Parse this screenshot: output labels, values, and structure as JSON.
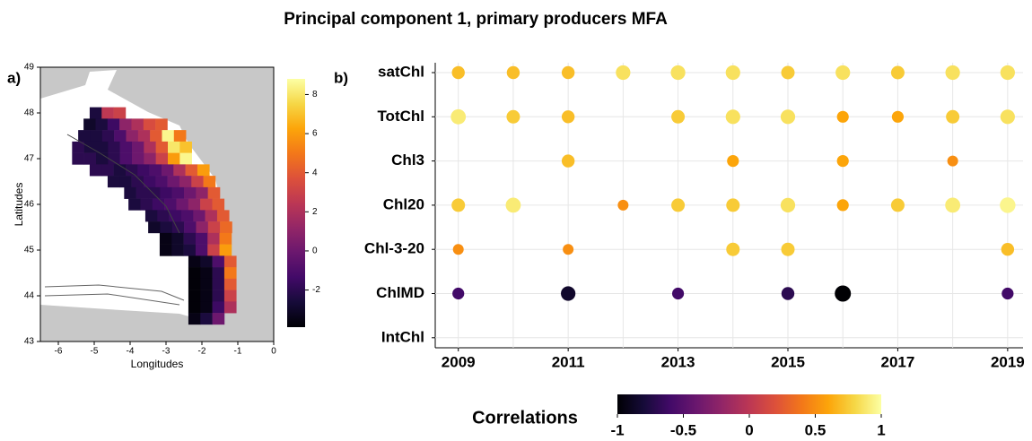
{
  "title": "Principal component 1, primary producers MFA",
  "chart_data": [
    {
      "type": "heatmap",
      "panel": "a)",
      "xlabel": "Longitudes",
      "ylabel": "Latitudes",
      "xlim": [
        -6.5,
        0
      ],
      "ylim": [
        43,
        49
      ],
      "xticks": [
        -6,
        -5,
        -4,
        -3,
        -2,
        -1,
        0
      ],
      "yticks": [
        43,
        44,
        45,
        46,
        47,
        48,
        49
      ],
      "clim": [
        -3.9,
        8.8
      ],
      "colorbar_ticks": [
        -2,
        0,
        2,
        4,
        6,
        8
      ],
      "colormap": "inferno",
      "rows": [
        {
          "lat": 48.0,
          "lon0": -4.96,
          "values": [
            -2.5,
            2.5,
            3
          ]
        },
        {
          "lat": 47.75,
          "lon0": -5.13,
          "values": [
            -3,
            -2.5,
            -1.5,
            1,
            2,
            3.5,
            4
          ]
        },
        {
          "lat": 47.5,
          "lon0": -5.28,
          "values": [
            -2.5,
            -2.5,
            -2,
            -1,
            1,
            2,
            4,
            8.5,
            5
          ]
        },
        {
          "lat": 47.25,
          "lon0": -5.45,
          "values": [
            -2,
            -2.5,
            -2.5,
            -2,
            -1,
            0,
            2,
            4,
            8,
            7
          ]
        },
        {
          "lat": 47.0,
          "lon0": -5.45,
          "values": [
            -2,
            -2,
            -2.5,
            -2,
            -1,
            0,
            1,
            3,
            6,
            8.5
          ]
        },
        {
          "lat": 46.75,
          "lon0": -4.96,
          "values": [
            -2,
            -2,
            -2.5,
            -2,
            -1.5,
            -1,
            0,
            2,
            4,
            6
          ]
        },
        {
          "lat": 46.5,
          "lon0": -4.46,
          "values": [
            -2.5,
            -2.5,
            -2,
            -1.5,
            -1,
            0,
            1,
            3,
            5
          ]
        },
        {
          "lat": 46.25,
          "lon0": -4.0,
          "values": [
            -2.5,
            -2,
            -2,
            -1.5,
            -1,
            0,
            1,
            4
          ]
        },
        {
          "lat": 46.0,
          "lon0": -3.88,
          "values": [
            -2.5,
            -2,
            -1.5,
            -1,
            0,
            1,
            3,
            4
          ]
        },
        {
          "lat": 45.75,
          "lon0": -3.41,
          "values": [
            -2.5,
            -2,
            -1.5,
            -1,
            0,
            2,
            4
          ]
        },
        {
          "lat": 45.5,
          "lon0": -3.33,
          "values": [
            -3,
            -2.5,
            -2,
            -1,
            1,
            3,
            4.5
          ]
        },
        {
          "lat": 45.25,
          "lon0": -3.01,
          "values": [
            -3.5,
            -3,
            -2,
            -1,
            2,
            5
          ]
        },
        {
          "lat": 45.0,
          "lon0": -3.01,
          "values": [
            -3.5,
            -3,
            -2.5,
            -1,
            3,
            6
          ]
        },
        {
          "lat": 44.75,
          "lon0": -2.21,
          "values": [
            -3.5,
            -3,
            -1,
            4
          ]
        },
        {
          "lat": 44.5,
          "lon0": -2.21,
          "values": [
            -3.8,
            -3.5,
            -2,
            5
          ]
        },
        {
          "lat": 44.25,
          "lon0": -2.21,
          "values": [
            -3.8,
            -3.5,
            -2,
            4
          ]
        },
        {
          "lat": 44.0,
          "lon0": -2.21,
          "values": [
            -3.8,
            -3.5,
            -2,
            3
          ]
        },
        {
          "lat": 43.75,
          "lon0": -2.21,
          "values": [
            -3.8,
            -3.5,
            -1.5,
            2
          ]
        },
        {
          "lat": 43.5,
          "lon0": -2.21,
          "values": [
            -3.5,
            -2.5,
            0
          ]
        }
      ]
    },
    {
      "type": "bubble",
      "panel": "b)",
      "categories": [
        "satChl",
        "TotChl",
        "Chl3",
        "Chl20",
        "Chl-3-20",
        "ChlMD",
        "IntChl"
      ],
      "x": [
        2009,
        2010,
        2011,
        2012,
        2013,
        2014,
        2015,
        2016,
        2017,
        2018,
        2019
      ],
      "xlim": [
        2008.58,
        2019.28
      ],
      "xticks": [
        2009,
        2011,
        2013,
        2015,
        2017,
        2019
      ],
      "grid": true,
      "values": [
        [
          0.7,
          0.7,
          0.7,
          0.85,
          0.85,
          0.85,
          0.75,
          0.85,
          0.75,
          0.85,
          0.85
        ],
        [
          0.9,
          0.75,
          0.7,
          null,
          0.75,
          0.85,
          0.85,
          0.6,
          0.6,
          0.75,
          0.85
        ],
        [
          null,
          null,
          0.7,
          null,
          null,
          0.6,
          null,
          0.6,
          null,
          0.5,
          null
        ],
        [
          0.75,
          0.9,
          null,
          0.5,
          0.75,
          0.75,
          0.85,
          0.6,
          0.75,
          0.9,
          0.95
        ],
        [
          0.5,
          null,
          0.5,
          null,
          null,
          0.75,
          0.75,
          null,
          null,
          null,
          0.7
        ],
        [
          -0.6,
          null,
          -0.85,
          null,
          -0.6,
          null,
          -0.7,
          -1,
          null,
          null,
          -0.6
        ],
        [
          null,
          null,
          null,
          null,
          null,
          null,
          null,
          null,
          null,
          null,
          null
        ]
      ],
      "clim": [
        -1,
        1
      ],
      "colorbar_title": "Correlations",
      "colorbar_ticks": [
        -1,
        -0.5,
        0,
        0.5,
        1
      ],
      "colormap": "inferno"
    }
  ]
}
